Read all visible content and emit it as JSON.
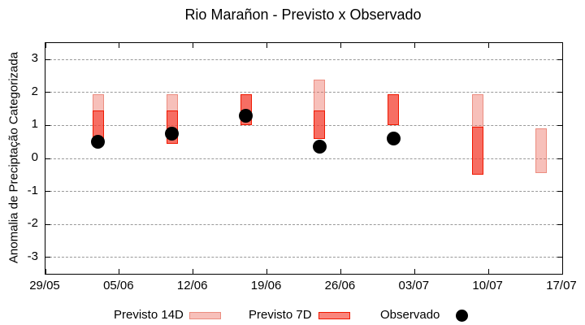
{
  "chart_data": {
    "type": "bar",
    "subtype": "forecast-range-candlesticks-with-observed-points",
    "title": "Rio Marañon - Previsto x Observado",
    "xlabel": "",
    "ylabel": "Anomalia de Preciptação Categorizada",
    "ylim": [
      -3.5,
      3.5
    ],
    "yticks": [
      3,
      2,
      1,
      0,
      -1,
      -2,
      -3
    ],
    "xticks": [
      "29/05",
      "05/06",
      "12/06",
      "19/06",
      "26/06",
      "03/07",
      "10/07",
      "17/07"
    ],
    "grid": "horizontal dashed gridlines at integer y values",
    "legend_position": "bottom",
    "axis_color": "#000000",
    "grid_color": "#999999",
    "series": [
      {
        "name": "Previsto 14D",
        "type": "range",
        "fill": "rgba(236,106,90,0.42)",
        "border": "#ec8d80",
        "ranges": [
          {
            "date": "03/06",
            "low": 0.55,
            "high": 1.95
          },
          {
            "date": "10/06",
            "low": 0.45,
            "high": 1.95
          },
          {
            "date": "17/06",
            "low": 1.0,
            "high": 1.95
          },
          {
            "date": "24/06",
            "low": 0.6,
            "high": 2.4
          },
          {
            "date": "01/07",
            "low": 1.0,
            "high": 1.95
          },
          {
            "date": "09/07",
            "low": -0.5,
            "high": 1.95
          },
          {
            "date": "15/07",
            "low": -0.45,
            "high": 0.9
          }
        ]
      },
      {
        "name": "Previsto 7D",
        "type": "range",
        "fill": "rgba(245,60,45,0.62)",
        "border": "#f01800",
        "ranges": [
          {
            "date": "03/06",
            "low": 0.55,
            "high": 1.45
          },
          {
            "date": "10/06",
            "low": 0.45,
            "high": 1.45
          },
          {
            "date": "17/06",
            "low": 1.0,
            "high": 1.95
          },
          {
            "date": "24/06",
            "low": 0.6,
            "high": 1.45
          },
          {
            "date": "01/07",
            "low": 1.0,
            "high": 1.95
          },
          {
            "date": "09/07",
            "low": -0.5,
            "high": 0.95
          }
        ]
      },
      {
        "name": "Observado",
        "type": "scatter",
        "color": "#000000",
        "points": [
          {
            "date": "03/06",
            "value": 0.5
          },
          {
            "date": "10/06",
            "value": 0.75
          },
          {
            "date": "17/06",
            "value": 1.3
          },
          {
            "date": "24/06",
            "value": 0.35
          },
          {
            "date": "01/07",
            "value": 0.6
          }
        ]
      }
    ]
  }
}
